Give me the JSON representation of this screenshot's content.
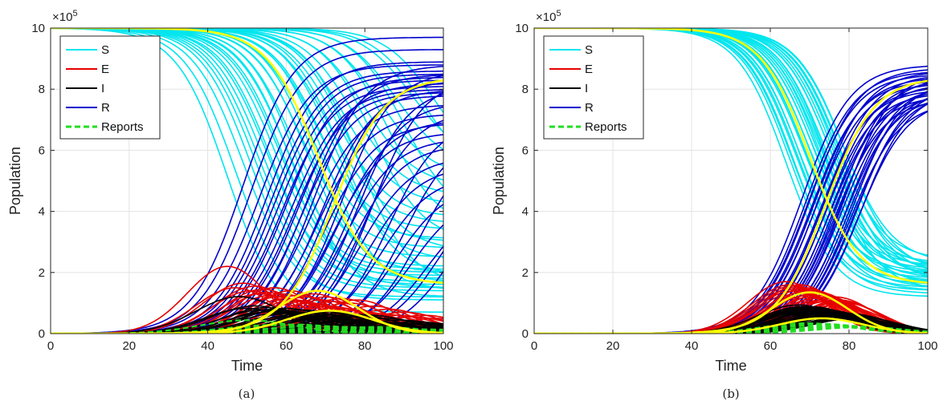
{
  "colors": {
    "S": "#00e5ee",
    "E": "#e60000",
    "I": "#000000",
    "R": "#0000cc",
    "Reports": "#22dd22",
    "mean": "#ffff00"
  },
  "chart_data": [
    {
      "type": "line",
      "caption": "(a)",
      "xlabel": "Time",
      "ylabel": "Population",
      "multiplier": "×10",
      "multiplier_exp": "5",
      "xlim": [
        0,
        100
      ],
      "ylim": [
        0,
        10
      ],
      "x_ticks": [
        0,
        20,
        40,
        60,
        80,
        100
      ],
      "y_ticks": [
        0,
        2,
        4,
        6,
        8,
        10
      ],
      "grid": true,
      "legend": {
        "position": "top-left",
        "entries": [
          "S",
          "E",
          "I",
          "R",
          "Reports"
        ]
      },
      "ensemble": {
        "midpoints": [
          45,
          47,
          49,
          51,
          52,
          53,
          54,
          55,
          56,
          57,
          58,
          59,
          60,
          61,
          62,
          63,
          64,
          65,
          66,
          67,
          68,
          69,
          70,
          71,
          72,
          73,
          74,
          75,
          76,
          77,
          78,
          80,
          82,
          84,
          86,
          88,
          90,
          92,
          95,
          98
        ],
        "final_R": [
          9.7,
          9.3,
          8.8,
          8.9,
          8.6,
          8.5,
          8.3,
          8.1,
          8.4,
          8.0,
          7.9,
          8.2,
          7.8,
          8.5,
          7.5,
          8.8,
          7.2,
          8.0,
          6.9,
          8.3,
          6.6,
          7.0,
          8.6,
          6.4,
          7.6,
          6.2,
          8.1,
          5.8,
          7.3,
          5.5,
          8.4,
          5.2,
          7.0,
          4.9,
          6.6,
          4.6,
          6.3,
          4.4,
          5.0,
          4.8
        ],
        "E_peak": [
          2.2,
          1.5,
          1.65,
          1.4,
          1.55,
          1.3,
          1.45,
          1.35,
          1.25,
          1.5,
          1.2,
          1.3,
          1.15,
          1.4,
          1.1,
          1.25,
          1.05,
          1.2,
          1.0,
          1.3,
          0.95,
          1.1,
          1.2,
          0.9,
          1.05,
          0.85,
          1.15,
          0.8,
          1.0,
          0.75,
          1.1,
          0.7,
          0.9,
          0.65,
          0.8,
          0.6,
          0.7,
          0.55,
          0.6,
          0.5
        ],
        "mean_curves": {
          "midpoint": 68,
          "final_R": 8.4,
          "E_peak": 1.4,
          "I_peak": 0.75
        }
      }
    },
    {
      "type": "line",
      "caption": "(b)",
      "xlabel": "Time",
      "ylabel": "Population",
      "multiplier": "×10",
      "multiplier_exp": "5",
      "xlim": [
        0,
        100
      ],
      "ylim": [
        0,
        10
      ],
      "x_ticks": [
        0,
        20,
        40,
        60,
        80,
        100
      ],
      "y_ticks": [
        0,
        2,
        4,
        6,
        8,
        10
      ],
      "grid": true,
      "legend": {
        "position": "top-left",
        "entries": [
          "S",
          "E",
          "I",
          "R",
          "Reports"
        ]
      },
      "ensemble": {
        "midpoints": [
          64,
          65,
          65.5,
          66,
          66.5,
          67,
          67.5,
          68,
          68.5,
          69,
          69.5,
          70,
          70.5,
          71,
          71.5,
          72,
          72.5,
          73,
          73.5,
          74,
          74.5,
          75,
          75.5,
          76,
          76.5,
          77,
          77.5,
          78,
          78.5,
          79
        ],
        "final_R": [
          8.8,
          8.6,
          8.5,
          8.7,
          8.3,
          8.4,
          8.2,
          8.6,
          8.0,
          8.1,
          8.5,
          7.9,
          8.3,
          7.8,
          8.2,
          8.0,
          7.7,
          8.4,
          8.1,
          7.9,
          8.6,
          7.8,
          8.2,
          8.0,
          7.6,
          8.3,
          7.9,
          8.1,
          7.7,
          8.0
        ],
        "E_peak": [
          1.7,
          1.6,
          1.55,
          1.5,
          1.45,
          1.4,
          1.6,
          1.35,
          1.3,
          1.5,
          1.25,
          1.45,
          1.2,
          1.4,
          1.15,
          1.35,
          1.3,
          1.1,
          1.25,
          1.2,
          1.05,
          1.15,
          1.1,
          1.0,
          1.2,
          0.95,
          1.1,
          1.05,
          0.9,
          1.0
        ],
        "mean_curves": {
          "midpoint": 70,
          "final_R": 8.4,
          "E_peak": 1.35,
          "I_peak": 0.5
        }
      }
    }
  ]
}
